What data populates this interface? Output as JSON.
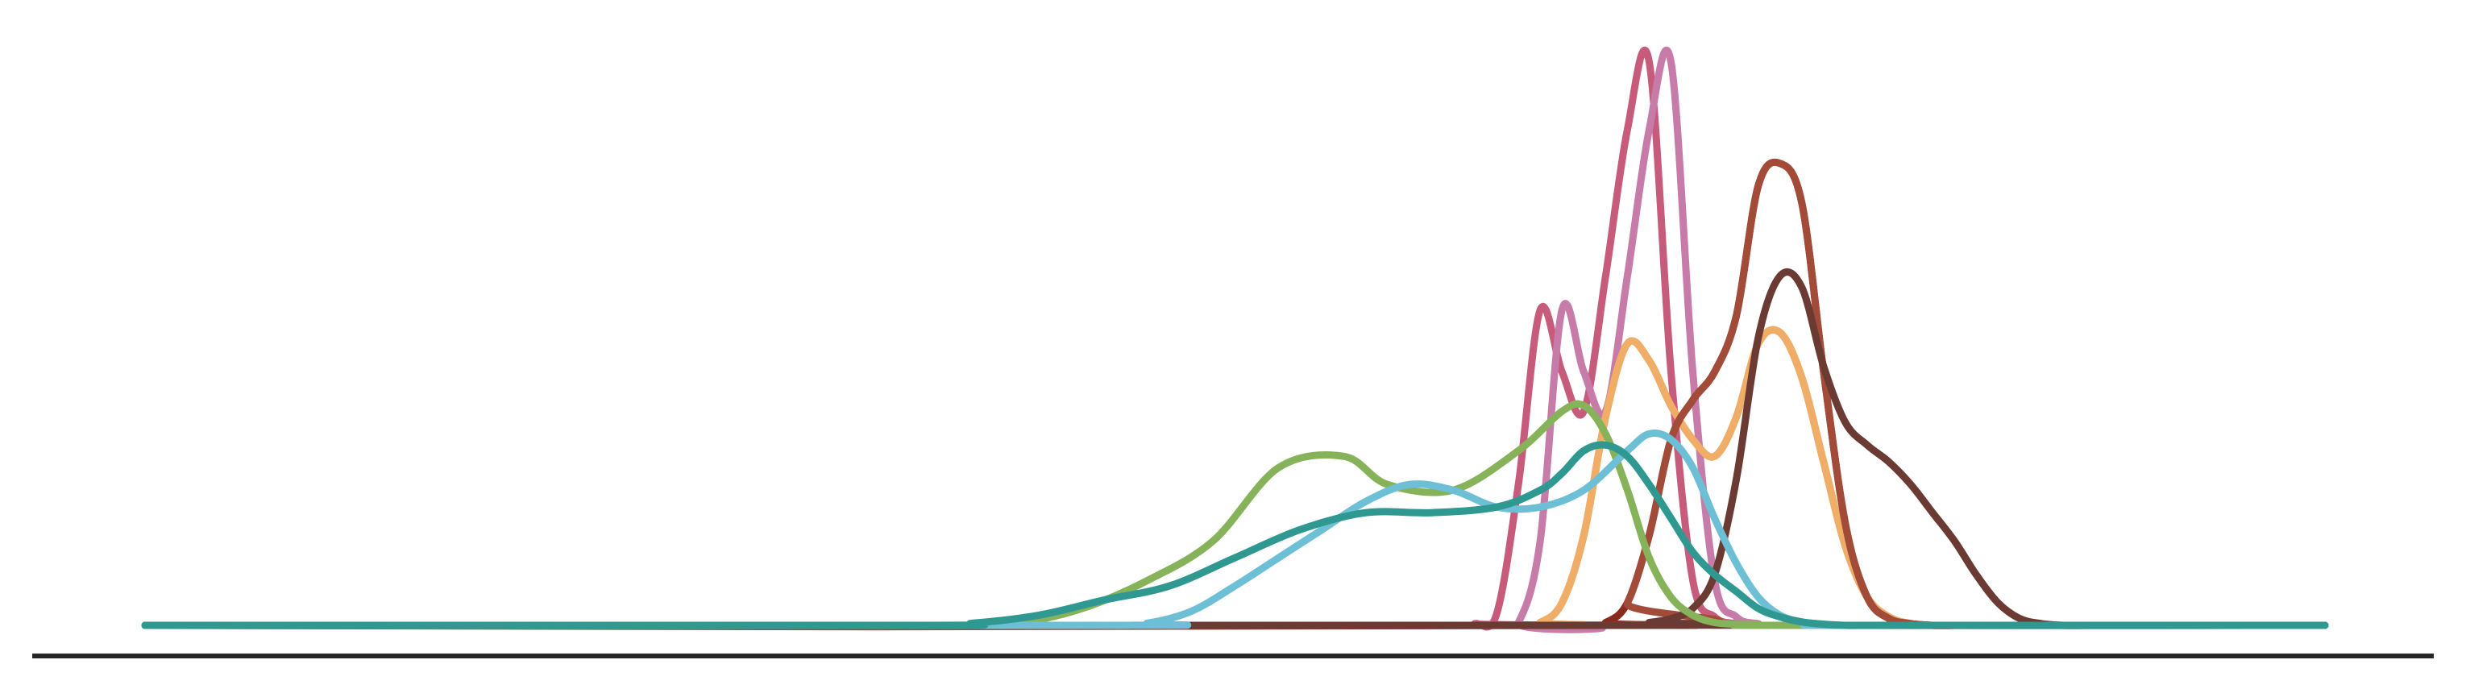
{
  "chart_data": {
    "type": "line",
    "title": "",
    "xlabel": "",
    "ylabel": "",
    "grid": false,
    "legend": "none",
    "xlim": [
      0,
      100
    ],
    "ylim": [
      0,
      1
    ],
    "series": [
      {
        "color": "#c65b7c",
        "x": [
          0,
          60,
          61,
          62,
          63,
          64,
          65,
          66,
          67,
          68,
          69,
          70,
          71,
          72,
          73,
          74,
          100
        ],
        "y": [
          0,
          0,
          0.003,
          0.02,
          0.25,
          0.56,
          0.45,
          0.38,
          0.62,
          0.88,
          1.0,
          0.45,
          0.08,
          0.015,
          0.003,
          0,
          0
        ]
      },
      {
        "color": "#c77ba9",
        "x": [
          0,
          62,
          63,
          64,
          65,
          66,
          67,
          68,
          69,
          70,
          71,
          72,
          73,
          74,
          75,
          100
        ],
        "y": [
          0,
          0,
          0.005,
          0.15,
          0.56,
          0.45,
          0.38,
          0.62,
          0.88,
          1.0,
          0.45,
          0.08,
          0.015,
          0.003,
          0,
          0
        ]
      },
      {
        "color": "#d9782f",
        "x": [
          0,
          63,
          64,
          65,
          66,
          67,
          68,
          69,
          70,
          71,
          72,
          73,
          74,
          75,
          76,
          77,
          78,
          79,
          80,
          81,
          82,
          83,
          84,
          100
        ],
        "y": [
          0,
          0,
          0.005,
          0.04,
          0.16,
          0.37,
          0.5,
          0.47,
          0.39,
          0.33,
          0.3,
          0.37,
          0.5,
          0.52,
          0.44,
          0.29,
          0.14,
          0.05,
          0.015,
          0.003,
          0,
          0,
          0,
          0
        ]
      },
      {
        "color": "#f0ad67",
        "x": [
          0,
          63,
          64,
          65,
          66,
          67,
          68,
          69,
          70,
          71,
          72,
          73,
          74,
          75,
          76,
          77,
          78,
          79,
          80,
          81,
          82,
          83,
          84,
          100
        ],
        "y": [
          0,
          0,
          0.005,
          0.04,
          0.16,
          0.37,
          0.5,
          0.47,
          0.39,
          0.33,
          0.3,
          0.37,
          0.5,
          0.52,
          0.44,
          0.29,
          0.14,
          0.05,
          0.015,
          0.003,
          0,
          0,
          0,
          0
        ]
      },
      {
        "color": "#8a2a1f",
        "x": [
          0,
          66,
          67,
          68,
          69,
          70,
          71,
          72,
          73,
          74,
          75,
          76,
          77,
          78,
          79,
          80,
          81,
          82,
          83,
          84,
          100
        ],
        "y": [
          0,
          0,
          0.005,
          0.04,
          0.16,
          0.33,
          0.4,
          0.45,
          0.55,
          0.78,
          0.82,
          0.75,
          0.45,
          0.18,
          0.05,
          0.012,
          0.003,
          0,
          0,
          0,
          0
        ]
      },
      {
        "color": "#a24b38",
        "x": [
          0,
          67,
          68,
          69,
          70,
          71,
          72,
          73,
          74,
          75,
          76,
          77,
          78,
          79,
          80,
          81,
          82,
          83,
          84,
          100
        ],
        "y": [
          0,
          0,
          0.04,
          0.16,
          0.33,
          0.4,
          0.45,
          0.55,
          0.78,
          0.82,
          0.75,
          0.45,
          0.18,
          0.05,
          0.012,
          0.003,
          0,
          0,
          0,
          0
        ]
      },
      {
        "color": "#6b3a33",
        "x": [
          0,
          68,
          69,
          70,
          71,
          72,
          73,
          74,
          75,
          76,
          77,
          78,
          79,
          80,
          81,
          82,
          83,
          84,
          85,
          86,
          87,
          88,
          89,
          90,
          100
        ],
        "y": [
          0,
          0,
          0.005,
          0.012,
          0.03,
          0.09,
          0.26,
          0.51,
          0.62,
          0.6,
          0.46,
          0.36,
          0.32,
          0.29,
          0.25,
          0.2,
          0.15,
          0.09,
          0.04,
          0.012,
          0.003,
          0,
          0,
          0,
          0
        ]
      },
      {
        "color": "#86b35a",
        "x": [
          0,
          37,
          40,
          43,
          46,
          49,
          52,
          55,
          57,
          60,
          63,
          65,
          66,
          67,
          68,
          69,
          70,
          71,
          72,
          73,
          74,
          75,
          100
        ],
        "y": [
          0,
          0,
          0.004,
          0.03,
          0.08,
          0.15,
          0.28,
          0.3,
          0.25,
          0.24,
          0.31,
          0.38,
          0.39,
          0.34,
          0.24,
          0.12,
          0.05,
          0.018,
          0.005,
          0.002,
          0.001,
          0,
          0
        ]
      },
      {
        "color": "#6dbfd6",
        "x": [
          0,
          44,
          46,
          48,
          50,
          52,
          54,
          56,
          58,
          60,
          62,
          64,
          66,
          68,
          69,
          70,
          71,
          72,
          73,
          74,
          75,
          76,
          77,
          78,
          100
        ],
        "y": [
          0,
          0,
          0.004,
          0.025,
          0.07,
          0.12,
          0.17,
          0.22,
          0.25,
          0.24,
          0.21,
          0.21,
          0.24,
          0.31,
          0.34,
          0.33,
          0.28,
          0.19,
          0.11,
          0.05,
          0.018,
          0.006,
          0.002,
          0,
          0
        ]
      },
      {
        "color": "#2f9891",
        "x": [
          0,
          35,
          38,
          41,
          44,
          47,
          50,
          53,
          56,
          59,
          62,
          64,
          65,
          66,
          67,
          68,
          69,
          70,
          71,
          72,
          73,
          74,
          75,
          76,
          77,
          78,
          79,
          80,
          81,
          100
        ],
        "y": [
          0,
          0,
          0.004,
          0.018,
          0.045,
          0.07,
          0.12,
          0.17,
          0.2,
          0.2,
          0.21,
          0.24,
          0.27,
          0.31,
          0.32,
          0.3,
          0.25,
          0.19,
          0.13,
          0.09,
          0.06,
          0.03,
          0.015,
          0.006,
          0.002,
          0,
          0,
          0,
          0,
          0
        ]
      }
    ]
  }
}
